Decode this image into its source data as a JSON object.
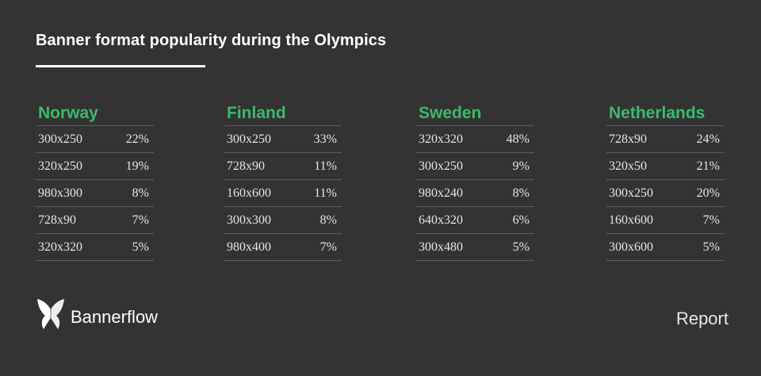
{
  "chart_data": {
    "type": "table",
    "title": "Banner format popularity during the Olympics",
    "tables": [
      {
        "country": "Norway",
        "rows": [
          {
            "format": "300x250",
            "share": "22%"
          },
          {
            "format": "320x250",
            "share": "19%"
          },
          {
            "format": "980x300",
            "share": "8%"
          },
          {
            "format": "728x90",
            "share": "7%"
          },
          {
            "format": "320x320",
            "share": "5%"
          }
        ]
      },
      {
        "country": "Finland",
        "rows": [
          {
            "format": "300x250",
            "share": "33%"
          },
          {
            "format": "728x90",
            "share": "11%"
          },
          {
            "format": "160x600",
            "share": "11%"
          },
          {
            "format": "300x300",
            "share": "8%"
          },
          {
            "format": "980x400",
            "share": "7%"
          }
        ]
      },
      {
        "country": "Sweden",
        "rows": [
          {
            "format": "320x320",
            "share": "48%"
          },
          {
            "format": "300x250",
            "share": "9%"
          },
          {
            "format": "980x240",
            "share": "8%"
          },
          {
            "format": "640x320",
            "share": "6%"
          },
          {
            "format": "300x480",
            "share": "5%"
          }
        ]
      },
      {
        "country": "Netherlands",
        "rows": [
          {
            "format": "728x90",
            "share": "24%"
          },
          {
            "format": "320x50",
            "share": "21%"
          },
          {
            "format": "300x250",
            "share": "20%"
          },
          {
            "format": "160x600",
            "share": "7%"
          },
          {
            "format": "300x600",
            "share": "5%"
          }
        ]
      }
    ]
  },
  "footer": {
    "brand": "Bannerflow",
    "logo_icon": "butterfly-icon",
    "label": "Report"
  },
  "colors": {
    "background": "#333333",
    "accent": "#3cba6b",
    "text": "#e8e8e8",
    "divider": "#5e5e5e"
  }
}
